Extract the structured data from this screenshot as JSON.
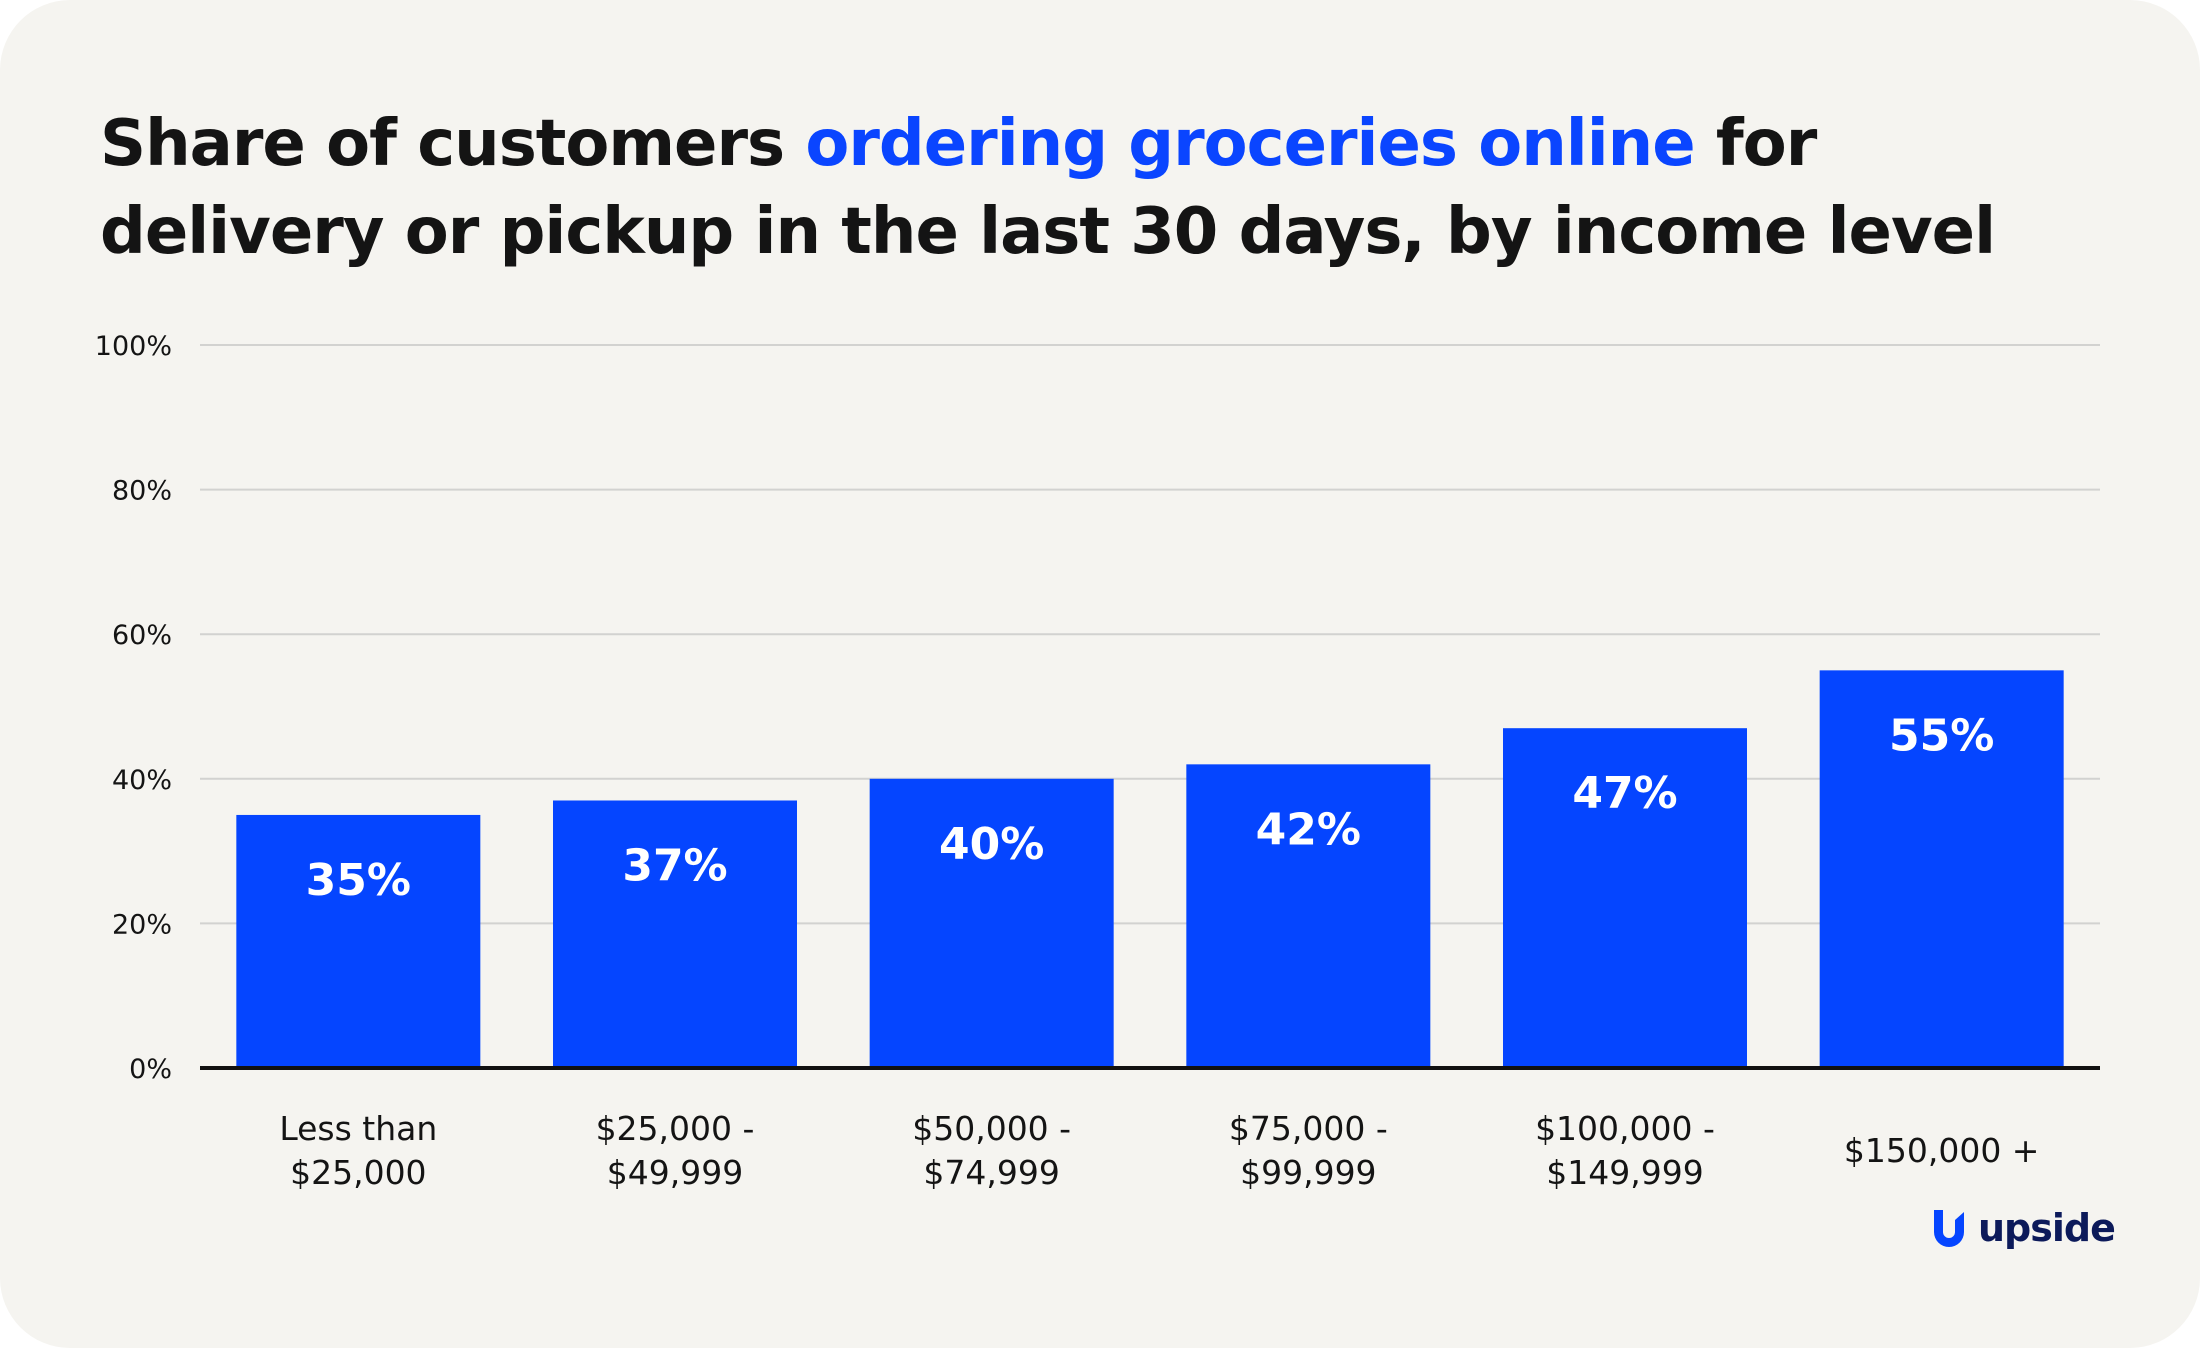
{
  "title": {
    "part1": "Share of customers ",
    "highlight": "ordering groceries online",
    "part2": " for delivery or pickup in the last 30 days, by income level"
  },
  "brand": {
    "name": "upside",
    "icon": "upside-logo-icon"
  },
  "colors": {
    "bar": "#0545ff",
    "highlight": "#0a45ff",
    "text": "#141414",
    "grid": "#d2d2d0",
    "background": "#f5f4f0"
  },
  "chart_data": {
    "type": "bar",
    "categories": [
      [
        "Less than",
        "$25,000"
      ],
      [
        "$25,000 -",
        "$49,999"
      ],
      [
        "$50,000 -",
        "$74,999"
      ],
      [
        "$75,000 -",
        "$99,999"
      ],
      [
        "$100,000 -",
        "$149,999"
      ],
      [
        "$150,000 +"
      ]
    ],
    "values": [
      35,
      37,
      40,
      42,
      47,
      55
    ],
    "data_labels": [
      "35%",
      "37%",
      "40%",
      "42%",
      "47%",
      "55%"
    ],
    "yticks": [
      "0%",
      "20%",
      "40%",
      "60%",
      "80%",
      "100%"
    ],
    "ylim": [
      0,
      100
    ],
    "grid": true,
    "legend": "none"
  }
}
